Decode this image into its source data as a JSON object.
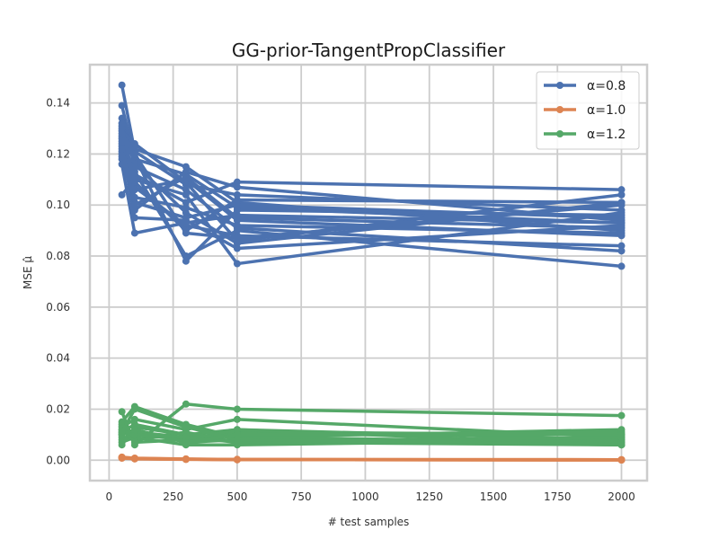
{
  "chart_data": {
    "type": "line",
    "title": "GG-prior-TangentPropClassifier",
    "xlabel": "# test samples",
    "ylabel": "MSE μ̂",
    "xlim": [
      -75,
      2100
    ],
    "ylim": [
      -0.008,
      0.155
    ],
    "xticks": [
      0,
      250,
      500,
      750,
      1000,
      1250,
      1500,
      1750,
      2000
    ],
    "xtick_labels": [
      "0",
      "250",
      "500",
      "750",
      "1000",
      "1250",
      "1500",
      "1750",
      "2000"
    ],
    "yticks": [
      0.0,
      0.02,
      0.04,
      0.06,
      0.08,
      0.1,
      0.12,
      0.14
    ],
    "ytick_labels": [
      "0.00",
      "0.02",
      "0.04",
      "0.06",
      "0.08",
      "0.10",
      "0.12",
      "0.14"
    ],
    "grid": true,
    "legend_position": "top-right",
    "x": [
      50,
      100,
      300,
      500,
      2000
    ],
    "series": [
      {
        "name": "α=0.8",
        "color": "#4c72b0",
        "runs": [
          [
            0.147,
            0.121,
            0.108,
            0.104,
            0.098
          ],
          [
            0.139,
            0.118,
            0.112,
            0.099,
            0.093
          ],
          [
            0.134,
            0.122,
            0.115,
            0.101,
            0.09
          ],
          [
            0.132,
            0.119,
            0.078,
            0.098,
            0.096
          ],
          [
            0.131,
            0.116,
            0.097,
            0.085,
            0.101
          ],
          [
            0.129,
            0.124,
            0.109,
            0.086,
            0.104
          ],
          [
            0.127,
            0.107,
            0.092,
            0.088,
            0.084
          ],
          [
            0.126,
            0.113,
            0.08,
            0.09,
            0.076
          ],
          [
            0.124,
            0.106,
            0.11,
            0.094,
            0.088
          ],
          [
            0.123,
            0.095,
            0.094,
            0.083,
            0.092
          ],
          [
            0.121,
            0.12,
            0.089,
            0.087,
            0.1
          ],
          [
            0.12,
            0.112,
            0.101,
            0.109,
            0.106
          ],
          [
            0.118,
            0.101,
            0.095,
            0.1,
            0.095
          ],
          [
            0.116,
            0.089,
            0.093,
            0.096,
            0.093
          ],
          [
            0.104,
            0.11,
            0.104,
            0.077,
            0.097
          ],
          [
            0.128,
            0.103,
            0.099,
            0.092,
            0.089
          ],
          [
            0.125,
            0.098,
            0.113,
            0.107,
            0.094
          ],
          [
            0.119,
            0.115,
            0.106,
            0.091,
            0.082
          ],
          [
            0.13,
            0.109,
            0.09,
            0.102,
            0.101
          ],
          [
            0.122,
            0.1,
            0.111,
            0.095,
            0.091
          ]
        ]
      },
      {
        "name": "α=1.0",
        "color": "#dd8452",
        "runs": [
          [
            0.0012,
            0.0008,
            0.0005,
            0.0003,
            0.0002
          ],
          [
            0.001,
            0.0006,
            0.0004,
            0.0003,
            0.0002
          ],
          [
            0.0009,
            0.0007,
            0.0004,
            0.0002,
            0.0001
          ],
          [
            0.0011,
            0.0005,
            0.0003,
            0.0002,
            0.0001
          ],
          [
            0.0008,
            0.0006,
            0.0004,
            0.0002,
            0.0001
          ]
        ]
      },
      {
        "name": "α=1.2",
        "color": "#55a868",
        "runs": [
          [
            0.019,
            0.006,
            0.022,
            0.02,
            0.0175
          ],
          [
            0.015,
            0.021,
            0.014,
            0.009,
            0.012
          ],
          [
            0.013,
            0.016,
            0.012,
            0.016,
            0.009
          ],
          [
            0.012,
            0.01,
            0.008,
            0.011,
            0.01
          ],
          [
            0.011,
            0.014,
            0.01,
            0.012,
            0.008
          ],
          [
            0.01,
            0.012,
            0.007,
            0.008,
            0.007
          ],
          [
            0.009,
            0.008,
            0.011,
            0.007,
            0.006
          ],
          [
            0.008,
            0.011,
            0.009,
            0.01,
            0.011
          ],
          [
            0.007,
            0.009,
            0.006,
            0.006,
            0.008
          ],
          [
            0.006,
            0.013,
            0.01,
            0.009,
            0.007
          ],
          [
            0.012,
            0.007,
            0.008,
            0.012,
            0.006
          ],
          [
            0.014,
            0.01,
            0.009,
            0.007,
            0.009
          ],
          [
            0.01,
            0.012,
            0.007,
            0.01,
            0.01
          ],
          [
            0.011,
            0.02,
            0.013,
            0.008,
            0.006
          ]
        ]
      }
    ]
  }
}
